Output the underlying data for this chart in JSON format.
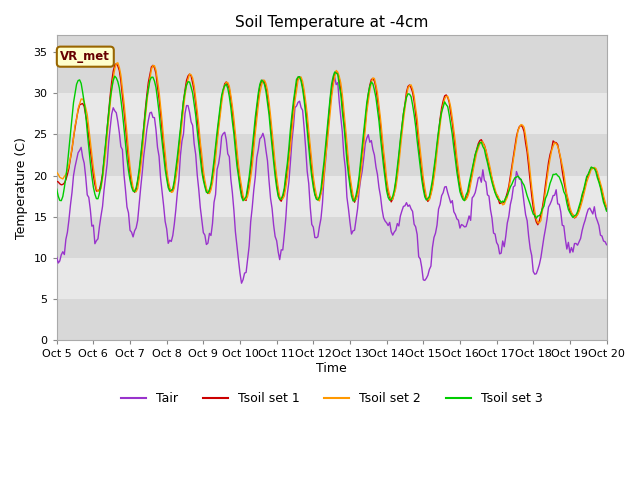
{
  "title": "Soil Temperature at -4cm",
  "xlabel": "Time",
  "ylabel": "Temperature (C)",
  "ylim": [
    0,
    37
  ],
  "yticks": [
    0,
    5,
    10,
    15,
    20,
    25,
    30,
    35
  ],
  "x_labels": [
    "Oct 5",
    "Oct 6",
    "Oct 7",
    "Oct 8",
    "Oct 9",
    "Oct 10",
    "Oct 11",
    "Oct 12",
    "Oct 13",
    "Oct 14",
    "Oct 15",
    "Oct 16",
    "Oct 17",
    "Oct 18",
    "Oct 19",
    "Oct 20"
  ],
  "colors": {
    "Tair": "#9933cc",
    "Tsoil1": "#cc0000",
    "Tsoil2": "#ff9900",
    "Tsoil3": "#00cc00"
  },
  "annotation_text": "VR_met",
  "legend_labels": [
    "Tair",
    "Tsoil set 1",
    "Tsoil set 2",
    "Tsoil set 3"
  ],
  "band_colors": [
    "#d8d8d8",
    "#e8e8e8"
  ],
  "grid_color": "white",
  "fig_bg": "#ffffff",
  "plot_bg_color": "#d8d8d8"
}
